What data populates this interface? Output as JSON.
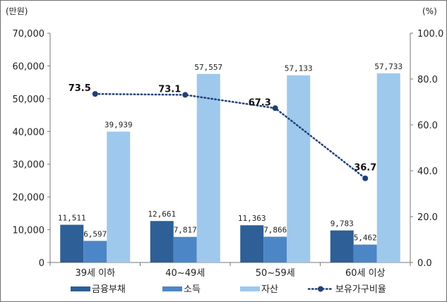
{
  "chart_data": {
    "type": "bar",
    "categories": [
      "39세 이하",
      "40~49세",
      "50~59세",
      "60세 이상"
    ],
    "series": [
      {
        "name": "금융부채",
        "values": [
          11511,
          12661,
          11363,
          9783
        ],
        "labels": [
          "11,511",
          "12,661",
          "11,363",
          "9,783"
        ],
        "color": "#2e5f96"
      },
      {
        "name": "소득",
        "values": [
          6597,
          7817,
          7866,
          5462
        ],
        "labels": [
          "6,597",
          "7,817",
          "7,866",
          "5,462"
        ],
        "color": "#4d86c6"
      },
      {
        "name": "자산",
        "values": [
          39939,
          57557,
          57133,
          57733
        ],
        "labels": [
          "39,939",
          "57,557",
          "57,133",
          "57,733"
        ],
        "color": "#9ec8ec"
      }
    ],
    "line_series": {
      "name": "보유가구비율",
      "values": [
        73.5,
        73.1,
        67.3,
        36.7
      ],
      "labels": [
        "73.5",
        "73.1",
        "67.3",
        "36.7"
      ],
      "color": "#1f3f7a",
      "axis": "right"
    },
    "left_axis": {
      "unit": "(만원)",
      "ylim": [
        0,
        70000
      ],
      "ticks": [
        "0",
        "10,000",
        "20,000",
        "30,000",
        "40,000",
        "50,000",
        "60,000",
        "70,000"
      ]
    },
    "right_axis": {
      "unit": "(%)",
      "ylim": [
        0,
        100
      ],
      "ticks": [
        "0.0",
        "20.0",
        "40.0",
        "60.0",
        "80.0",
        "100.0"
      ]
    },
    "grid": false,
    "legend_position": "bottom"
  }
}
